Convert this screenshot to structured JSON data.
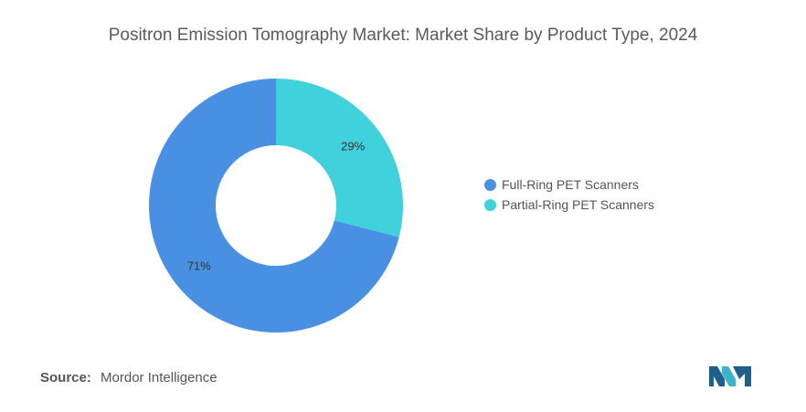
{
  "chart_data": {
    "type": "pie",
    "variant": "donut",
    "title": "Positron Emission Tomography Market: Market Share by Product Type, 2024",
    "categories": [
      "Full-Ring PET Scanners",
      "Partial-Ring PET Scanners"
    ],
    "values": [
      71,
      29
    ],
    "labels": [
      "71%",
      "29%"
    ],
    "colors": [
      "#4a90e2",
      "#40d1dc"
    ],
    "legend_position": "right"
  },
  "source": {
    "label": "Source:",
    "value": "Mordor Intelligence"
  },
  "logo": {
    "icon": "mordor-intelligence-logo",
    "colors": [
      "#1f5f8b",
      "#3fb3c8"
    ]
  }
}
